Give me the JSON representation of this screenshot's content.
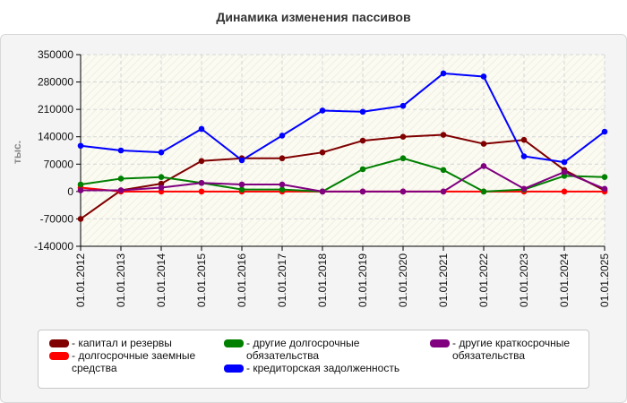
{
  "title": "Динамика изменения пассивов",
  "chart_data": {
    "type": "line",
    "title": "Динамика изменения пассивов",
    "ylabel": "тыс.",
    "xlabel": "",
    "ylim": [
      -140000,
      350000
    ],
    "yticks": [
      350000,
      280000,
      210000,
      140000,
      70000,
      0,
      -70000,
      -140000
    ],
    "ytick_labels": [
      "350000",
      "280000",
      "210000",
      "140000",
      "70000",
      "0",
      "-70000",
      "-140000"
    ],
    "grid": true,
    "legend_position": "bottom",
    "categories": [
      "01.01.2012",
      "01.01.2013",
      "01.01.2014",
      "01.01.2015",
      "01.01.2016",
      "01.01.2017",
      "01.01.2018",
      "01.01.2019",
      "01.01.2020",
      "01.01.2021",
      "01.01.2022",
      "01.01.2023",
      "01.01.2024",
      "01.01.2025"
    ],
    "series": [
      {
        "name": "- капитал и резервы",
        "color": "#800000",
        "values": [
          -70000,
          3000,
          20000,
          78000,
          85000,
          85000,
          100000,
          130000,
          140000,
          145000,
          122000,
          132000,
          55000,
          3000
        ]
      },
      {
        "name": "- долгосрочные заемные средства",
        "color": "#ff0000",
        "values": [
          10000,
          0,
          0,
          0,
          0,
          0,
          0,
          0,
          0,
          0,
          0,
          0,
          0,
          0
        ]
      },
      {
        "name": "- другие долгосрочные обязательства",
        "color": "#008000",
        "values": [
          18000,
          33000,
          37000,
          22000,
          5000,
          5000,
          0,
          57000,
          85000,
          55000,
          0,
          5000,
          40000,
          37000
        ]
      },
      {
        "name": "- кредиторская задолженность",
        "color": "#0000ff",
        "values": [
          117000,
          105000,
          100000,
          160000,
          80000,
          143000,
          207000,
          204000,
          219000,
          302000,
          294000,
          90000,
          75000,
          153000
        ]
      },
      {
        "name": "- другие краткосрочные обязательства",
        "color": "#800080",
        "values": [
          3000,
          3000,
          10000,
          22000,
          18000,
          18000,
          0,
          0,
          0,
          0,
          65000,
          7000,
          50000,
          7000
        ]
      }
    ]
  }
}
